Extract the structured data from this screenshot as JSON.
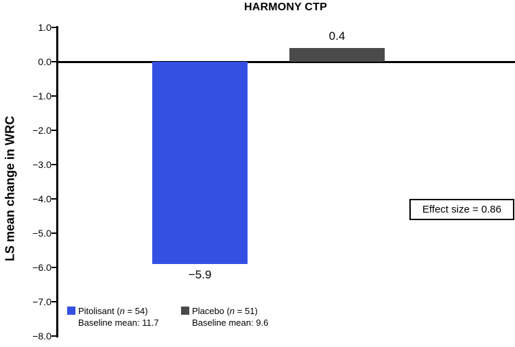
{
  "chart_data": {
    "type": "bar",
    "title": "HARMONY CTP",
    "ylabel": "LS mean change in WRC",
    "ylim": [
      -8.0,
      1.0
    ],
    "grid": false,
    "yticks": [
      {
        "value": 1.0,
        "label": "1.0"
      },
      {
        "value": 0.0,
        "label": "0.0"
      },
      {
        "value": -1.0,
        "label": "−1.0"
      },
      {
        "value": -2.0,
        "label": "−2.0"
      },
      {
        "value": -3.0,
        "label": "−3.0"
      },
      {
        "value": -4.0,
        "label": "−4.0"
      },
      {
        "value": -5.0,
        "label": "−5.0"
      },
      {
        "value": -6.0,
        "label": "−6.0"
      },
      {
        "value": -7.0,
        "label": "−7.0"
      },
      {
        "value": -8.0,
        "label": "−8.0"
      }
    ],
    "bars": [
      {
        "name": "Pitolisant",
        "value": -5.9,
        "value_label": "−5.9",
        "color": "#3450e2"
      },
      {
        "name": "Placebo",
        "value": 0.4,
        "value_label": "0.4",
        "color": "#4a4a4a"
      }
    ],
    "annotation": "Effect size = 0.86",
    "legend_position": "bottom-left",
    "legend": [
      {
        "label": "Pitolisant (n = 54)",
        "sublabel": "Baseline mean: 11.7",
        "color": "#3450e2"
      },
      {
        "label": "Placebo (n = 51)",
        "sublabel": "Baseline mean: 9.6",
        "color": "#4a4a4a"
      }
    ]
  }
}
